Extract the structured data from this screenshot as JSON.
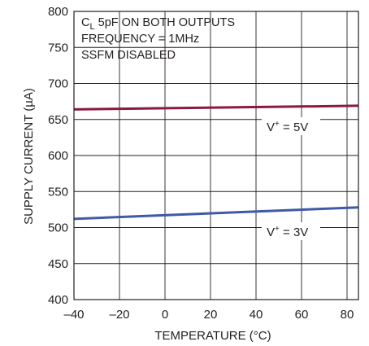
{
  "chart_data": {
    "type": "line",
    "xlabel": "TEMPERATURE (°C)",
    "ylabel": "SUPPLY CURRENT (µA)",
    "xlim": [
      -40,
      85
    ],
    "ylim": [
      400,
      800
    ],
    "x_ticks": [
      -40,
      -20,
      0,
      20,
      40,
      60,
      80
    ],
    "y_ticks": [
      400,
      450,
      500,
      550,
      600,
      650,
      700,
      750,
      800
    ],
    "grid": true,
    "annotation": {
      "line1_main": "C",
      "line1_sub": "L",
      "line1_rest": " 5pF ON BOTH OUTPUTS",
      "line2": "FREQUENCY = 1MHz",
      "line3": "SSFM DISABLED"
    },
    "series": [
      {
        "label_main": "V",
        "label_sup": "+",
        "label_rest": " = 5V",
        "color": "#8b1a3c",
        "x": [
          -40,
          85
        ],
        "y": [
          664,
          669
        ]
      },
      {
        "label_main": "V",
        "label_sup": "+",
        "label_rest": " = 3V",
        "color": "#3e5aa8",
        "x": [
          -40,
          85
        ],
        "y": [
          512,
          528
        ]
      }
    ]
  }
}
